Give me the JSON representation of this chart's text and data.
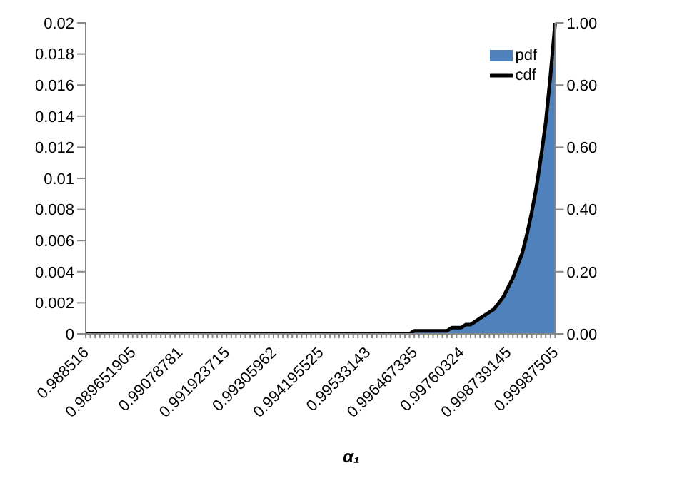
{
  "chart_data": {
    "type": "area",
    "xlabel": "α₁",
    "categories": [
      "0.988516",
      null,
      null,
      null,
      null,
      null,
      null,
      null,
      null,
      null,
      "0.989651905",
      null,
      null,
      null,
      null,
      null,
      null,
      null,
      null,
      null,
      "0.99078781",
      null,
      null,
      null,
      null,
      null,
      null,
      null,
      null,
      null,
      "0.991923715",
      null,
      null,
      null,
      null,
      null,
      null,
      null,
      null,
      null,
      "0.99305962",
      null,
      null,
      null,
      null,
      null,
      null,
      null,
      null,
      null,
      "0.994195525",
      null,
      null,
      null,
      null,
      null,
      null,
      null,
      null,
      null,
      "0.99533143",
      null,
      null,
      null,
      null,
      null,
      null,
      null,
      null,
      null,
      "0.996467335",
      null,
      null,
      null,
      null,
      null,
      null,
      null,
      null,
      null,
      "0.99760324",
      null,
      null,
      null,
      null,
      null,
      null,
      null,
      null,
      null,
      "0.998739145",
      null,
      null,
      null,
      null,
      null,
      null,
      null,
      null,
      null,
      "0.99987505"
    ],
    "series": [
      {
        "name": "pdf",
        "color": "#4f81bd",
        "values": [
          0,
          0,
          0,
          0,
          0,
          0,
          0,
          0,
          0,
          0,
          0,
          0,
          0,
          0,
          0,
          0,
          0,
          0,
          0,
          0,
          0,
          0,
          0,
          0,
          0,
          0,
          0,
          0,
          0,
          0,
          0,
          0,
          0,
          0,
          0,
          0,
          0,
          0,
          0,
          0,
          0,
          0,
          0,
          0,
          0,
          0,
          0,
          0,
          0,
          0,
          0,
          0,
          0,
          0,
          0,
          0,
          0,
          0,
          0,
          0,
          0,
          0,
          0,
          0,
          0,
          0,
          0,
          0,
          0,
          0,
          0.0002,
          0.0002,
          0.0002,
          0.0002,
          0.0002,
          0.0002,
          0.0002,
          0.0002,
          0.0004,
          0.0004,
          0.0004,
          0.0006,
          0.0006,
          0.0008,
          0.001,
          0.0012,
          0.0014,
          0.0016,
          0.002,
          0.0024,
          0.003,
          0.0036,
          0.0044,
          0.0052,
          0.0064,
          0.0078,
          0.0094,
          0.0114,
          0.0136,
          0.0166,
          0.0196
        ]
      },
      {
        "name": "cdf",
        "type": "line",
        "axis": "y2",
        "color": "#000000",
        "values": [
          0,
          0,
          0,
          0,
          0,
          0,
          0,
          0,
          0,
          0,
          0,
          0,
          0,
          0,
          0,
          0,
          0,
          0,
          0,
          0,
          0,
          0,
          0,
          0,
          0,
          0,
          0,
          0,
          0,
          0,
          0,
          0,
          0,
          0,
          0,
          0,
          0,
          0,
          0,
          0,
          0,
          0,
          0,
          0,
          0,
          0,
          0,
          0,
          0,
          0,
          0,
          0,
          0,
          0,
          0,
          0,
          0,
          0,
          0,
          0,
          0,
          0,
          0,
          0,
          0,
          0,
          0,
          0,
          0,
          0,
          0.01,
          0.01,
          0.01,
          0.01,
          0.01,
          0.01,
          0.01,
          0.01,
          0.02,
          0.02,
          0.02,
          0.03,
          0.03,
          0.04,
          0.05,
          0.06,
          0.07,
          0.08,
          0.1,
          0.12,
          0.15,
          0.18,
          0.22,
          0.26,
          0.32,
          0.39,
          0.47,
          0.57,
          0.68,
          0.83,
          1
        ]
      }
    ],
    "ylim": [
      0,
      0.02
    ],
    "yticks": [
      0,
      0.002,
      0.004,
      0.006,
      0.008,
      0.01,
      0.012,
      0.014,
      0.016,
      0.018,
      0.02
    ],
    "y2lim": [
      0,
      1
    ],
    "y2ticks": [
      {
        "value": 0,
        "label": "0.00"
      },
      {
        "value": 0.2,
        "label": "0.20"
      },
      {
        "value": 0.4,
        "label": "0.40"
      },
      {
        "value": 0.6,
        "label": "0.60"
      },
      {
        "value": 0.8,
        "label": "0.80"
      },
      {
        "value": 1,
        "label": "1.00"
      }
    ],
    "legend": "top right",
    "grid": false,
    "marker": "none",
    "line_style": "solid"
  }
}
